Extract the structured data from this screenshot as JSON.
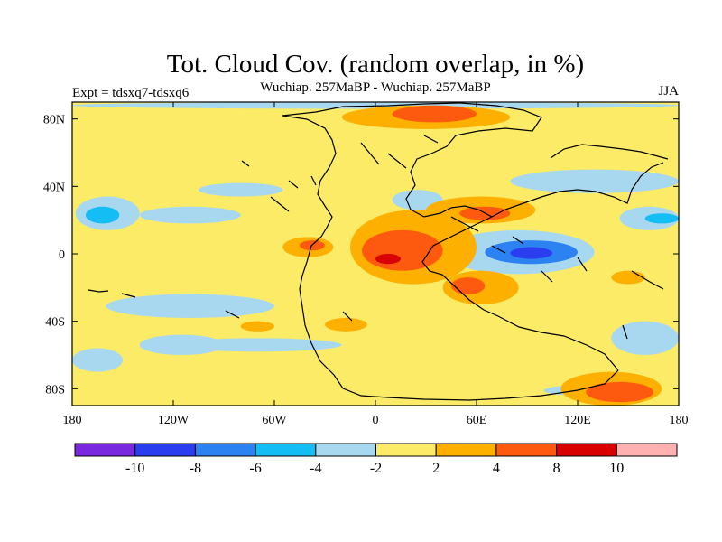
{
  "chart_data": {
    "type": "heatmap",
    "title": "Tot. Cloud Cov. (random overlap, in %)",
    "subtitle": "Wuchiap. 257MaBP - Wuchiap. 257MaBP",
    "left_label": "Expt = tdsxq7-tdsxq6",
    "right_label": "JJA",
    "x_ticks": [
      {
        "value": -180,
        "label": "180"
      },
      {
        "value": -120,
        "label": "120W"
      },
      {
        "value": -60,
        "label": "60W"
      },
      {
        "value": 0,
        "label": "0"
      },
      {
        "value": 60,
        "label": "60E"
      },
      {
        "value": 120,
        "label": "120E"
      },
      {
        "value": 180,
        "label": "180"
      }
    ],
    "y_ticks": [
      {
        "value": 80,
        "label": "80N"
      },
      {
        "value": 40,
        "label": "40N"
      },
      {
        "value": 0,
        "label": "0"
      },
      {
        "value": -40,
        "label": "40S"
      },
      {
        "value": -80,
        "label": "80S"
      }
    ],
    "xlim": [
      -180,
      180
    ],
    "ylim": [
      -90,
      90
    ],
    "colorbar": {
      "colors": [
        "#7a28e0",
        "#2a3ef0",
        "#2c82f0",
        "#14bdf4",
        "#a8d8f0",
        "#fbeb66",
        "#fdb000",
        "#fd5a10",
        "#d80000",
        "#ffb0b0"
      ],
      "labels": [
        "-10",
        "-8",
        "-6",
        "-4",
        "-2",
        "2",
        "4",
        "8",
        "10"
      ]
    },
    "background_color": "#fbeb66",
    "regions": [
      {
        "level": "-4",
        "color": "#a8d8f0",
        "lon": [
          -178,
          -140
        ],
        "lat": [
          14,
          34
        ]
      },
      {
        "level": "-6",
        "color": "#14bdf4",
        "lon": [
          -172,
          -152
        ],
        "lat": [
          18,
          28
        ]
      },
      {
        "level": "-4",
        "color": "#a8d8f0",
        "lon": [
          -140,
          -80
        ],
        "lat": [
          18,
          28
        ]
      },
      {
        "level": "-4",
        "color": "#a8d8f0",
        "lon": [
          -105,
          -55
        ],
        "lat": [
          34,
          42
        ]
      },
      {
        "level": "-4",
        "color": "#a8d8f0",
        "lon": [
          -160,
          -60
        ],
        "lat": [
          -38,
          -24
        ]
      },
      {
        "level": "-4",
        "color": "#a8d8f0",
        "lon": [
          -140,
          -90
        ],
        "lat": [
          -60,
          -48
        ]
      },
      {
        "level": "-4",
        "color": "#a8d8f0",
        "lon": [
          -180,
          -150
        ],
        "lat": [
          -70,
          -56
        ]
      },
      {
        "level": "-4",
        "color": "#a8d8f0",
        "lon": [
          140,
          180
        ],
        "lat": [
          -60,
          -40
        ]
      },
      {
        "level": "-4",
        "color": "#a8d8f0",
        "lon": [
          40,
          130
        ],
        "lat": [
          -12,
          14
        ]
      },
      {
        "level": "-6",
        "color": "#2c82f0",
        "lon": [
          65,
          120
        ],
        "lat": [
          -6,
          8
        ]
      },
      {
        "level": "-8",
        "color": "#2a3ef0",
        "lon": [
          80,
          105
        ],
        "lat": [
          -3,
          4
        ]
      },
      {
        "level": "-4",
        "color": "#a8d8f0",
        "lon": [
          145,
          180
        ],
        "lat": [
          14,
          28
        ]
      },
      {
        "level": "-6",
        "color": "#14bdf4",
        "lon": [
          160,
          180
        ],
        "lat": [
          18,
          24
        ]
      },
      {
        "level": "-4",
        "color": "#a8d8f0",
        "lon": [
          80,
          180
        ],
        "lat": [
          36,
          50
        ]
      },
      {
        "level": "-4",
        "color": "#a8d8f0",
        "lon": [
          10,
          40
        ],
        "lat": [
          26,
          38
        ]
      },
      {
        "level": "-4",
        "color": "#a8d8f0",
        "lon": [
          -180,
          180
        ],
        "lat": [
          86,
          90
        ]
      },
      {
        "level": "-4",
        "color": "#a8d8f0",
        "lon": [
          -120,
          -20
        ],
        "lat": [
          -58,
          -50
        ]
      },
      {
        "level": "-4",
        "color": "#a8d8f0",
        "lon": [
          100,
          140
        ],
        "lat": [
          -84,
          -78
        ]
      },
      {
        "level": "2",
        "color": "#fdb000",
        "lon": [
          -15,
          60
        ],
        "lat": [
          -18,
          26
        ]
      },
      {
        "level": "4",
        "color": "#fd5a10",
        "lon": [
          -8,
          40
        ],
        "lat": [
          -10,
          14
        ]
      },
      {
        "level": "8",
        "color": "#d80000",
        "lon": [
          0,
          15
        ],
        "lat": [
          -6,
          0
        ]
      },
      {
        "level": "2",
        "color": "#fdb000",
        "lon": [
          40,
          85
        ],
        "lat": [
          -30,
          -10
        ]
      },
      {
        "level": "4",
        "color": "#fd5a10",
        "lon": [
          45,
          65
        ],
        "lat": [
          -24,
          -14
        ]
      },
      {
        "level": "2",
        "color": "#fdb000",
        "lon": [
          30,
          95
        ],
        "lat": [
          18,
          34
        ]
      },
      {
        "level": "4",
        "color": "#fd5a10",
        "lon": [
          50,
          80
        ],
        "lat": [
          20,
          28
        ]
      },
      {
        "level": "2",
        "color": "#fdb000",
        "lon": [
          -55,
          -25
        ],
        "lat": [
          -2,
          10
        ]
      },
      {
        "level": "4",
        "color": "#fd5a10",
        "lon": [
          -45,
          -30
        ],
        "lat": [
          2,
          8
        ]
      },
      {
        "level": "2",
        "color": "#fdb000",
        "lon": [
          -20,
          80
        ],
        "lat": [
          74,
          88
        ]
      },
      {
        "level": "4",
        "color": "#fd5a10",
        "lon": [
          10,
          60
        ],
        "lat": [
          78,
          88
        ]
      },
      {
        "level": "2",
        "color": "#fdb000",
        "lon": [
          -30,
          -5
        ],
        "lat": [
          -46,
          -38
        ]
      },
      {
        "level": "2",
        "color": "#fdb000",
        "lon": [
          110,
          170
        ],
        "lat": [
          -90,
          -70
        ]
      },
      {
        "level": "4",
        "color": "#fd5a10",
        "lon": [
          125,
          165
        ],
        "lat": [
          -88,
          -76
        ]
      },
      {
        "level": "2",
        "color": "#fdb000",
        "lon": [
          140,
          160
        ],
        "lat": [
          -18,
          -10
        ]
      },
      {
        "level": "2",
        "color": "#fdb000",
        "lon": [
          -80,
          -60
        ],
        "lat": [
          -46,
          -40
        ]
      }
    ]
  }
}
